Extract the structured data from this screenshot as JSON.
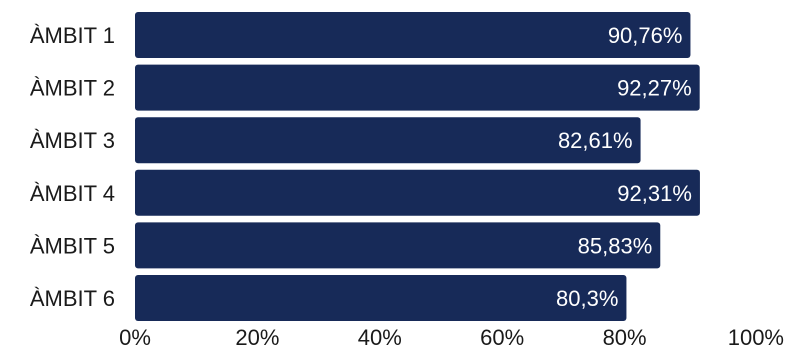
{
  "chart_data": {
    "type": "bar",
    "orientation": "horizontal",
    "categories": [
      "ÀMBIT 1",
      "ÀMBIT 2",
      "ÀMBIT 3",
      "ÀMBIT 4",
      "ÀMBIT 5",
      "ÀMBIT 6"
    ],
    "values": [
      90.76,
      92.27,
      82.61,
      92.31,
      85.83,
      80.3
    ],
    "value_labels": [
      "90,76%",
      "92,27%",
      "82,61%",
      "92,31%",
      "85,83%",
      "80,3%"
    ],
    "xlim": [
      0,
      100
    ],
    "x_ticks": [
      0,
      20,
      40,
      60,
      80,
      100
    ],
    "x_tick_labels": [
      "0%",
      "20%",
      "40%",
      "60%",
      "80%",
      "100%"
    ],
    "title": "",
    "xlabel": "",
    "ylabel": "",
    "grid": false,
    "legend": "none",
    "bar_color": "#172a58"
  }
}
